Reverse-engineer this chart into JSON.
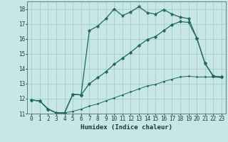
{
  "xlabel": "Humidex (Indice chaleur)",
  "background_color": "#c8e6e6",
  "grid_color": "#a8d0d0",
  "line_color": "#1a6b5a",
  "xlim": [
    -0.5,
    23.5
  ],
  "ylim": [
    11,
    18.5
  ],
  "yticks": [
    11,
    12,
    13,
    14,
    15,
    16,
    17,
    18
  ],
  "xticks": [
    0,
    1,
    2,
    3,
    4,
    5,
    6,
    7,
    8,
    9,
    10,
    11,
    12,
    13,
    14,
    15,
    16,
    17,
    18,
    19,
    20,
    21,
    22,
    23
  ],
  "curve1_x": [
    0,
    1,
    2,
    3,
    4,
    5,
    6,
    7,
    8,
    9,
    10,
    11,
    12,
    13,
    14,
    15,
    16,
    17,
    18,
    19,
    20,
    21,
    22,
    23
  ],
  "curve1_y": [
    11.9,
    11.85,
    11.3,
    11.05,
    11.05,
    12.3,
    12.25,
    16.55,
    16.85,
    17.35,
    18.0,
    17.55,
    17.8,
    18.15,
    17.75,
    17.65,
    17.95,
    17.65,
    17.45,
    17.35,
    16.05,
    14.35,
    13.5,
    13.45
  ],
  "curve2_x": [
    0,
    1,
    2,
    3,
    4,
    5,
    6,
    7,
    8,
    9,
    10,
    11,
    12,
    13,
    14,
    15,
    16,
    17,
    18,
    19,
    20,
    21,
    22,
    23
  ],
  "curve2_y": [
    11.9,
    11.85,
    11.3,
    11.05,
    11.05,
    12.3,
    12.25,
    13.0,
    13.4,
    13.8,
    14.3,
    14.7,
    15.1,
    15.55,
    15.95,
    16.15,
    16.55,
    16.95,
    17.15,
    17.1,
    16.05,
    14.35,
    13.5,
    13.45
  ],
  "curve3_x": [
    0,
    1,
    2,
    3,
    4,
    5,
    6,
    7,
    8,
    9,
    10,
    11,
    12,
    13,
    14,
    15,
    16,
    17,
    18,
    19,
    20,
    21,
    22,
    23
  ],
  "curve3_y": [
    11.9,
    11.85,
    11.3,
    11.05,
    11.05,
    11.15,
    11.3,
    11.5,
    11.65,
    11.85,
    12.05,
    12.25,
    12.45,
    12.65,
    12.85,
    12.95,
    13.15,
    13.3,
    13.45,
    13.5,
    13.45,
    13.45,
    13.45,
    13.4
  ]
}
